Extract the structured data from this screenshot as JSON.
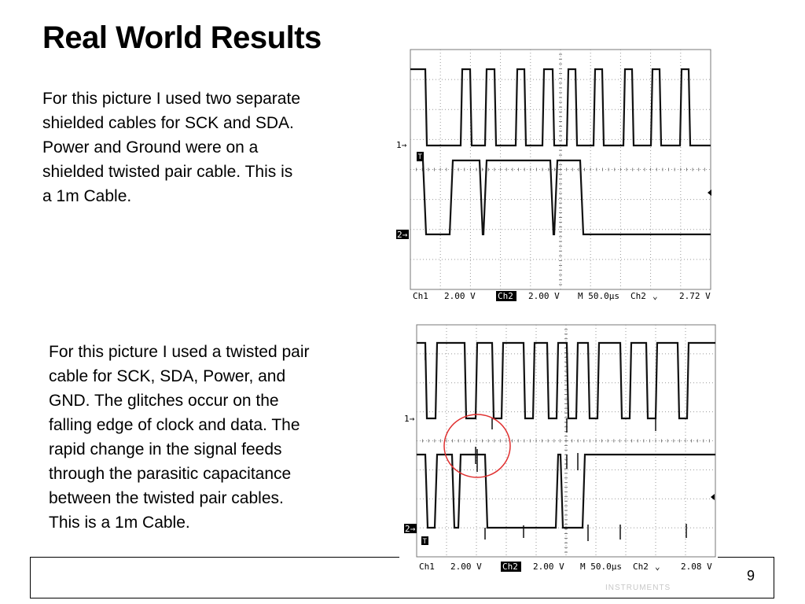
{
  "slide": {
    "title": "Real World Results",
    "paragraph1": [
      "For this picture I used two separate",
      "shielded cables for SCK and SDA.",
      "Power and Ground were on a",
      "shielded twisted pair cable.  This is",
      "a 1m Cable."
    ],
    "paragraph2": [
      "For this picture I used a twisted pair",
      "cable for SCK, SDA, Power, and",
      "GND.  The glitches occur on the",
      "falling edge of clock and data.  The",
      "rapid change in the signal feeds",
      "through the parasitic capacitance",
      "between the twisted pair cables.",
      "This is a 1m Cable."
    ],
    "page_number": "9",
    "footer_faint_text": "INSTRUMENTS"
  },
  "scope1": {
    "ch1_marker": "1→",
    "ch2_marker": "2→",
    "trigger_marker": "T",
    "readout": {
      "ch1": "Ch1",
      "ch1_scale": "2.00 V",
      "ch2": "Ch2",
      "ch2_scale": "2.00 V",
      "timebase": "M 50.0µs",
      "trig_src": "Ch2",
      "trig_sym": "⌄",
      "trig_level": "2.72 V"
    }
  },
  "scope2": {
    "ch1_marker": "1→",
    "ch2_marker": "2→",
    "trigger_marker": "T",
    "readout": {
      "ch1": "Ch1",
      "ch1_scale": "2.00 V",
      "ch2": "Ch2",
      "ch2_scale": "2.00 V",
      "timebase": "M 50.0µs",
      "trig_src": "Ch2",
      "trig_sym": "⌄",
      "trig_level": "2.08 V"
    }
  },
  "colors": {
    "trace": "#111111",
    "grid": "#999999",
    "highlight_circle": "#e03030"
  }
}
